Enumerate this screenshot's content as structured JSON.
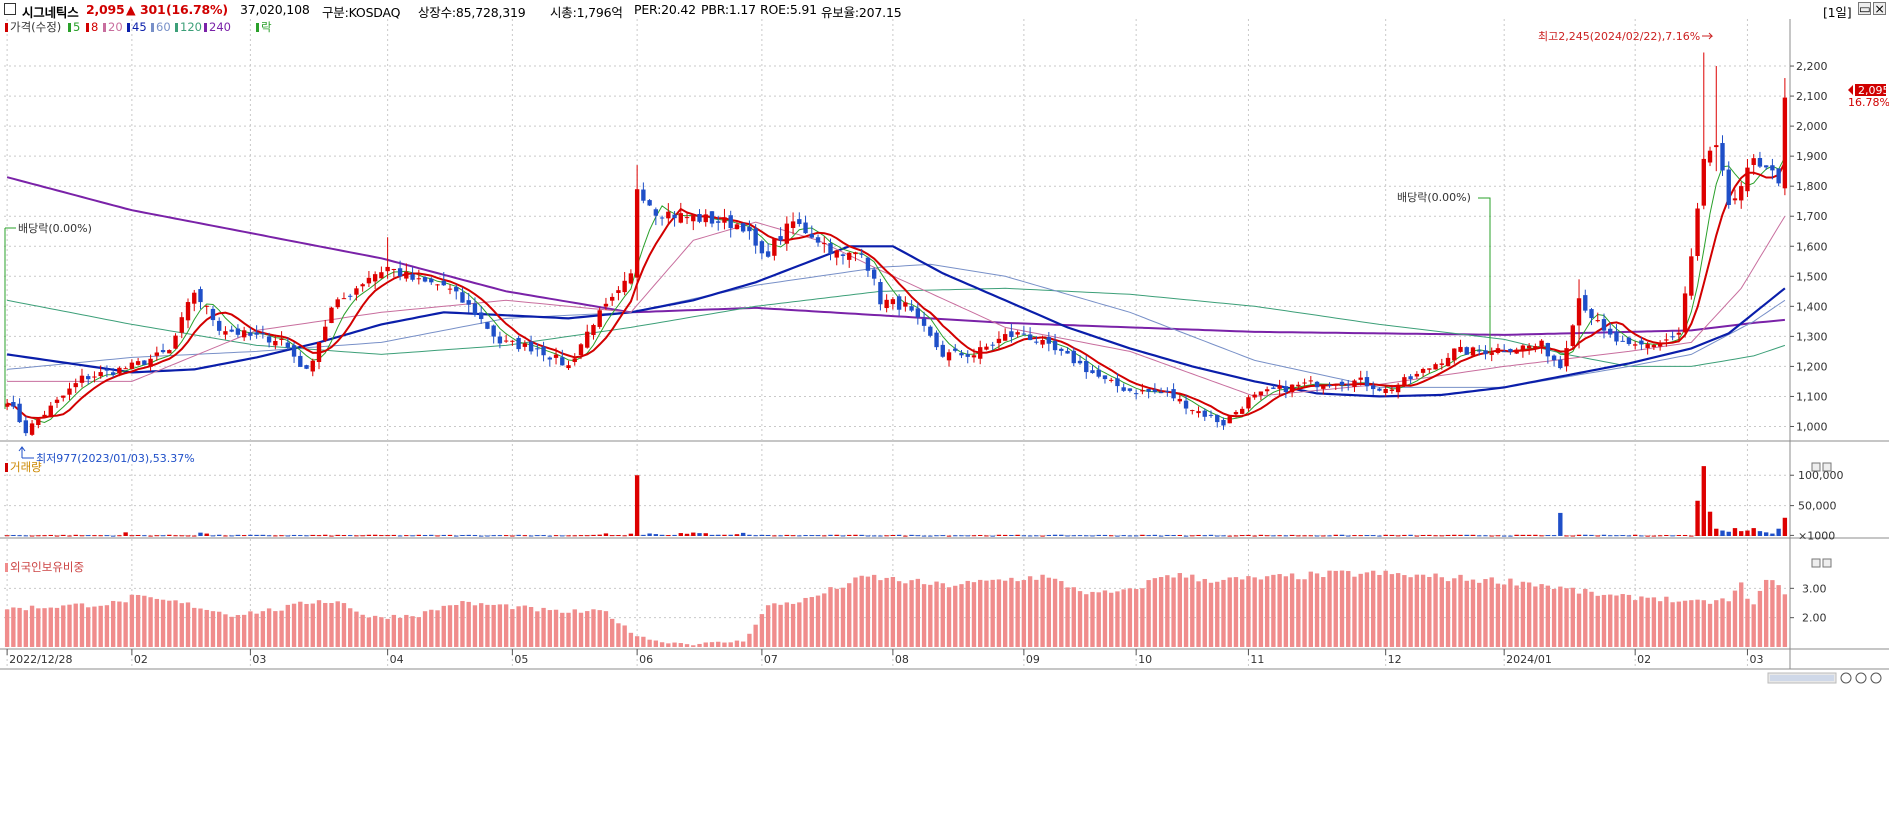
{
  "header": {
    "name": "시그네틱스",
    "price": "2,095",
    "arrow": "▲",
    "change": "301",
    "change_pct": "(16.78%)",
    "volume": "37,020,108",
    "market": "구분:KOSDAQ",
    "shares": "상장수:85,728,319",
    "mcap": "시총:1,796억",
    "per": "PER:20.42",
    "pbr": "PBR:1.17",
    "roe": "ROE:5.91",
    "reserve": "유보율:207.15",
    "period": "[1일]"
  },
  "colors": {
    "up": "#dd0000",
    "down": "#1f4fc8",
    "ma5": "#2aa02a",
    "ma8": "#d20000",
    "ma20": "#c86e9e",
    "ma45": "#0a1eaa",
    "ma60": "#7890c8",
    "ma120": "#3c9f78",
    "ma240": "#7a22a8",
    "foreign": "#f08c8c"
  },
  "legend": {
    "price": "가격(수정)",
    "items": [
      "5",
      "8",
      "20",
      "45",
      "60",
      "120",
      "240",
      "락"
    ]
  },
  "annotations": {
    "high": "최고2,245(2024/02/22),7.16%",
    "low": "최저977(2023/01/03),53.37%",
    "dividend1": "배당락(0.00%)",
    "dividend2": "배당락(0.00%)",
    "last_price": "2,095",
    "last_pct": "16.78%"
  },
  "panels": {
    "volume_title": "거래량",
    "foreign_title": "외국인보유비중"
  },
  "chart_data": {
    "type": "candlestick",
    "price_axis": {
      "ticks": [
        1000,
        1100,
        1200,
        1300,
        1400,
        1500,
        1600,
        1700,
        1800,
        1900,
        2000,
        2100,
        2200
      ],
      "labels": [
        "1,000",
        "1,100",
        "1,200",
        "1,300",
        "1,400",
        "1,500",
        "1,600",
        "1,700",
        "1,800",
        "1,900",
        "2,000",
        "2,100",
        "2,200"
      ],
      "range": [
        955,
        2310
      ]
    },
    "volume_axis": {
      "ticks": [
        1000,
        50000,
        100000
      ],
      "labels": [
        "×1000",
        "50,000",
        "100,000"
      ],
      "range": [
        0,
        130000
      ]
    },
    "foreign_axis": {
      "ticks": [
        2.0,
        3.0
      ],
      "labels": [
        "2.00",
        "3.00"
      ],
      "range": [
        1.0,
        4.0
      ]
    },
    "x_labels": [
      {
        "i": 0,
        "label": "2022/12/28"
      },
      {
        "i": 20,
        "label": "02"
      },
      {
        "i": 39,
        "label": "03"
      },
      {
        "i": 61,
        "label": "04"
      },
      {
        "i": 81,
        "label": "05"
      },
      {
        "i": 101,
        "label": "06"
      },
      {
        "i": 121,
        "label": "07"
      },
      {
        "i": 142,
        "label": "08"
      },
      {
        "i": 163,
        "label": "09"
      },
      {
        "i": 181,
        "label": "10"
      },
      {
        "i": 199,
        "label": "11"
      },
      {
        "i": 221,
        "label": "12"
      },
      {
        "i": 240,
        "label": "2024/01"
      },
      {
        "i": 261,
        "label": "02"
      },
      {
        "i": 279,
        "label": "03"
      }
    ],
    "keypoints": [
      [
        0,
        1090
      ],
      [
        3,
        985
      ],
      [
        12,
        1160
      ],
      [
        20,
        1200
      ],
      [
        26,
        1250
      ],
      [
        30,
        1450
      ],
      [
        34,
        1330
      ],
      [
        39,
        1300
      ],
      [
        44,
        1290
      ],
      [
        48,
        1180
      ],
      [
        52,
        1390
      ],
      [
        58,
        1500
      ],
      [
        61,
        1530
      ],
      [
        66,
        1480
      ],
      [
        70,
        1470
      ],
      [
        75,
        1380
      ],
      [
        79,
        1280
      ],
      [
        85,
        1260
      ],
      [
        90,
        1200
      ],
      [
        94,
        1350
      ],
      [
        98,
        1440
      ],
      [
        100,
        1500
      ],
      [
        101,
        1800
      ],
      [
        104,
        1720
      ],
      [
        108,
        1700
      ],
      [
        112,
        1690
      ],
      [
        118,
        1670
      ],
      [
        121,
        1560
      ],
      [
        126,
        1680
      ],
      [
        129,
        1640
      ],
      [
        134,
        1560
      ],
      [
        137,
        1590
      ],
      [
        140,
        1420
      ],
      [
        144,
        1400
      ],
      [
        150,
        1240
      ],
      [
        155,
        1240
      ],
      [
        160,
        1300
      ],
      [
        163,
        1310
      ],
      [
        167,
        1260
      ],
      [
        171,
        1220
      ],
      [
        176,
        1150
      ],
      [
        180,
        1120
      ],
      [
        186,
        1110
      ],
      [
        190,
        1060
      ],
      [
        195,
        1010
      ],
      [
        199,
        1090
      ],
      [
        203,
        1120
      ],
      [
        208,
        1140
      ],
      [
        213,
        1150
      ],
      [
        217,
        1150
      ],
      [
        221,
        1120
      ],
      [
        226,
        1170
      ],
      [
        232,
        1250
      ],
      [
        236,
        1250
      ],
      [
        240,
        1260
      ],
      [
        246,
        1270
      ],
      [
        249,
        1200
      ],
      [
        252,
        1430
      ],
      [
        256,
        1310
      ],
      [
        260,
        1260
      ],
      [
        265,
        1280
      ],
      [
        268,
        1310
      ],
      [
        270,
        1560
      ],
      [
        272,
        1880
      ],
      [
        274,
        1920
      ],
      [
        276,
        1740
      ],
      [
        278,
        1780
      ],
      [
        280,
        1900
      ],
      [
        282,
        1870
      ],
      [
        284,
        1800
      ],
      [
        285,
        2095
      ]
    ],
    "volume_spikes": [
      [
        101,
        100000
      ],
      [
        31,
        5500
      ],
      [
        249,
        38000
      ],
      [
        271,
        58000
      ],
      [
        272,
        115000
      ],
      [
        273,
        40000
      ],
      [
        274,
        12000
      ],
      [
        275,
        9000
      ],
      [
        276,
        7000
      ],
      [
        277,
        13000
      ],
      [
        278,
        8000
      ],
      [
        279,
        9000
      ],
      [
        280,
        13000
      ],
      [
        281,
        8000
      ],
      [
        282,
        6000
      ],
      [
        283,
        4000
      ],
      [
        284,
        12000
      ],
      [
        285,
        30000
      ]
    ],
    "foreign_keypoints": [
      [
        0,
        2.3
      ],
      [
        18,
        2.5
      ],
      [
        20,
        2.7
      ],
      [
        28,
        2.5
      ],
      [
        36,
        2.1
      ],
      [
        44,
        2.3
      ],
      [
        50,
        2.6
      ],
      [
        54,
        2.5
      ],
      [
        58,
        2.0
      ],
      [
        66,
        2.1
      ],
      [
        72,
        2.5
      ],
      [
        80,
        2.4
      ],
      [
        88,
        2.2
      ],
      [
        96,
        2.2
      ],
      [
        100,
        1.5
      ],
      [
        104,
        1.2
      ],
      [
        110,
        1.1
      ],
      [
        118,
        1.2
      ],
      [
        122,
        2.4
      ],
      [
        128,
        2.6
      ],
      [
        134,
        3.1
      ],
      [
        138,
        3.4
      ],
      [
        142,
        3.3
      ],
      [
        150,
        3.1
      ],
      [
        156,
        3.2
      ],
      [
        160,
        3.3
      ],
      [
        166,
        3.4
      ],
      [
        170,
        3.1
      ],
      [
        174,
        2.8
      ],
      [
        180,
        2.9
      ],
      [
        186,
        3.5
      ],
      [
        192,
        3.3
      ],
      [
        198,
        3.3
      ],
      [
        206,
        3.4
      ],
      [
        214,
        3.5
      ],
      [
        220,
        3.5
      ],
      [
        228,
        3.4
      ],
      [
        236,
        3.3
      ],
      [
        244,
        3.2
      ],
      [
        252,
        2.9
      ],
      [
        258,
        2.7
      ],
      [
        264,
        2.7
      ],
      [
        270,
        2.5
      ],
      [
        276,
        2.6
      ],
      [
        278,
        3.1
      ],
      [
        280,
        2.4
      ],
      [
        282,
        3.3
      ],
      [
        285,
        2.9
      ]
    ],
    "ma240_keypoints": [
      [
        0,
        1830
      ],
      [
        20,
        1720
      ],
      [
        40,
        1640
      ],
      [
        60,
        1560
      ],
      [
        80,
        1450
      ],
      [
        100,
        1380
      ],
      [
        120,
        1395
      ],
      [
        140,
        1370
      ],
      [
        160,
        1345
      ],
      [
        180,
        1330
      ],
      [
        200,
        1315
      ],
      [
        220,
        1310
      ],
      [
        240,
        1305
      ],
      [
        260,
        1315
      ],
      [
        270,
        1320
      ],
      [
        280,
        1345
      ],
      [
        285,
        1355
      ]
    ],
    "ma120_keypoints": [
      [
        0,
        1420
      ],
      [
        20,
        1340
      ],
      [
        40,
        1270
      ],
      [
        60,
        1240
      ],
      [
        80,
        1270
      ],
      [
        100,
        1330
      ],
      [
        120,
        1400
      ],
      [
        140,
        1450
      ],
      [
        160,
        1460
      ],
      [
        180,
        1440
      ],
      [
        200,
        1400
      ],
      [
        220,
        1340
      ],
      [
        240,
        1290
      ],
      [
        250,
        1240
      ],
      [
        260,
        1200
      ],
      [
        270,
        1200
      ],
      [
        280,
        1235
      ],
      [
        285,
        1270
      ]
    ],
    "ma60_keypoints": [
      [
        0,
        1190
      ],
      [
        20,
        1230
      ],
      [
        40,
        1250
      ],
      [
        60,
        1280
      ],
      [
        80,
        1360
      ],
      [
        100,
        1380
      ],
      [
        120,
        1470
      ],
      [
        140,
        1530
      ],
      [
        148,
        1540
      ],
      [
        160,
        1500
      ],
      [
        180,
        1380
      ],
      [
        200,
        1220
      ],
      [
        220,
        1130
      ],
      [
        240,
        1130
      ],
      [
        260,
        1200
      ],
      [
        270,
        1240
      ],
      [
        280,
        1350
      ],
      [
        285,
        1420
      ]
    ],
    "ma45_keypoints": [
      [
        0,
        1240
      ],
      [
        20,
        1180
      ],
      [
        30,
        1190
      ],
      [
        40,
        1230
      ],
      [
        50,
        1280
      ],
      [
        60,
        1340
      ],
      [
        70,
        1380
      ],
      [
        80,
        1370
      ],
      [
        90,
        1360
      ],
      [
        100,
        1380
      ],
      [
        110,
        1420
      ],
      [
        120,
        1480
      ],
      [
        130,
        1560
      ],
      [
        135,
        1600
      ],
      [
        142,
        1600
      ],
      [
        150,
        1510
      ],
      [
        160,
        1420
      ],
      [
        170,
        1330
      ],
      [
        180,
        1260
      ],
      [
        190,
        1200
      ],
      [
        200,
        1150
      ],
      [
        210,
        1110
      ],
      [
        220,
        1100
      ],
      [
        230,
        1105
      ],
      [
        240,
        1130
      ],
      [
        250,
        1170
      ],
      [
        260,
        1210
      ],
      [
        270,
        1260
      ],
      [
        276,
        1310
      ],
      [
        282,
        1410
      ],
      [
        285,
        1460
      ]
    ],
    "ma20_keypoints": [
      [
        0,
        1150
      ],
      [
        20,
        1150
      ],
      [
        40,
        1320
      ],
      [
        60,
        1380
      ],
      [
        80,
        1420
      ],
      [
        100,
        1380
      ],
      [
        110,
        1620
      ],
      [
        120,
        1680
      ],
      [
        130,
        1620
      ],
      [
        140,
        1520
      ],
      [
        160,
        1330
      ],
      [
        180,
        1250
      ],
      [
        200,
        1100
      ],
      [
        220,
        1140
      ],
      [
        240,
        1200
      ],
      [
        260,
        1250
      ],
      [
        270,
        1280
      ],
      [
        278,
        1460
      ],
      [
        285,
        1700
      ]
    ]
  }
}
